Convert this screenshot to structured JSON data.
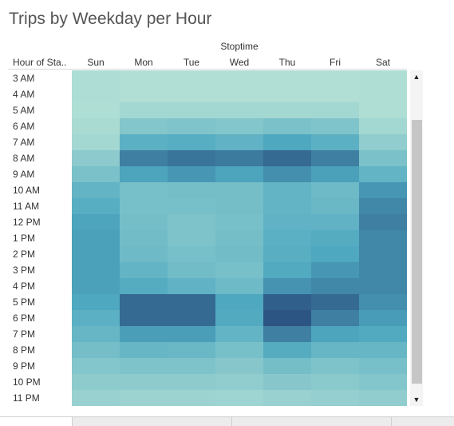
{
  "title": "Trips by Weekday per Hour",
  "chart_data": {
    "type": "heatmap",
    "title": "Trips by Weekday per Hour",
    "column_group_label": "Stoptime",
    "row_header": "Hour of Sta..",
    "columns": [
      "Sun",
      "Mon",
      "Tue",
      "Wed",
      "Thu",
      "Fri",
      "Sat"
    ],
    "rows": [
      "3 AM",
      "4 AM",
      "5 AM",
      "6 AM",
      "7 AM",
      "8 AM",
      "9 AM",
      "10 AM",
      "11 AM",
      "12 PM",
      "1 PM",
      "2 PM",
      "3 PM",
      "4 PM",
      "5 PM",
      "6 PM",
      "7 PM",
      "8 PM",
      "9 PM",
      "10 PM",
      "11 PM"
    ],
    "values": [
      [
        0.06,
        0.04,
        0.04,
        0.04,
        0.04,
        0.04,
        0.05
      ],
      [
        0.06,
        0.04,
        0.04,
        0.04,
        0.04,
        0.04,
        0.05
      ],
      [
        0.05,
        0.12,
        0.12,
        0.12,
        0.12,
        0.12,
        0.05
      ],
      [
        0.08,
        0.3,
        0.32,
        0.3,
        0.35,
        0.32,
        0.12
      ],
      [
        0.12,
        0.52,
        0.55,
        0.5,
        0.6,
        0.52,
        0.22
      ],
      [
        0.25,
        0.8,
        0.85,
        0.82,
        0.9,
        0.8,
        0.35
      ],
      [
        0.35,
        0.62,
        0.68,
        0.62,
        0.72,
        0.64,
        0.48
      ],
      [
        0.48,
        0.36,
        0.38,
        0.38,
        0.48,
        0.42,
        0.68
      ],
      [
        0.55,
        0.36,
        0.36,
        0.38,
        0.48,
        0.44,
        0.76
      ],
      [
        0.62,
        0.38,
        0.33,
        0.36,
        0.5,
        0.5,
        0.8
      ],
      [
        0.64,
        0.4,
        0.33,
        0.38,
        0.52,
        0.56,
        0.76
      ],
      [
        0.64,
        0.42,
        0.36,
        0.4,
        0.54,
        0.6,
        0.76
      ],
      [
        0.64,
        0.48,
        0.4,
        0.36,
        0.58,
        0.68,
        0.76
      ],
      [
        0.64,
        0.56,
        0.5,
        0.42,
        0.7,
        0.76,
        0.76
      ],
      [
        0.6,
        0.9,
        0.9,
        0.6,
        0.95,
        0.9,
        0.72
      ],
      [
        0.52,
        0.9,
        0.9,
        0.58,
        1.0,
        0.8,
        0.66
      ],
      [
        0.46,
        0.65,
        0.65,
        0.48,
        0.8,
        0.62,
        0.58
      ],
      [
        0.38,
        0.46,
        0.44,
        0.36,
        0.56,
        0.46,
        0.46
      ],
      [
        0.3,
        0.33,
        0.33,
        0.28,
        0.38,
        0.33,
        0.36
      ],
      [
        0.24,
        0.24,
        0.24,
        0.22,
        0.28,
        0.26,
        0.3
      ],
      [
        0.18,
        0.16,
        0.16,
        0.15,
        0.18,
        0.2,
        0.22
      ]
    ],
    "color_scale": {
      "low": "#b8e3d6",
      "mid": "#4ea8c0",
      "high": "#2d5583"
    },
    "grid": false,
    "legend": "none"
  },
  "scrollbar": {
    "up_arrow": "▲",
    "down_arrow": "▼"
  }
}
